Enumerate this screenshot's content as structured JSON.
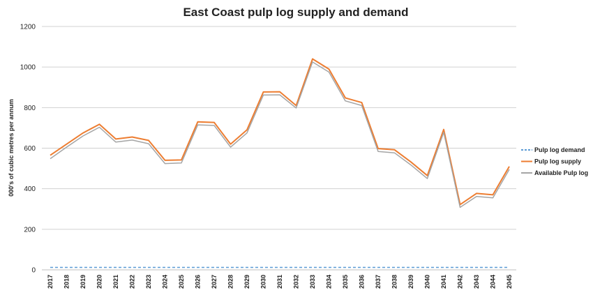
{
  "chart_data": {
    "type": "line",
    "title": "East Coast pulp log supply and demand",
    "xlabel": "",
    "ylabel": "000's of cubic metres per annum",
    "ylim": [
      0,
      1200
    ],
    "yticks": [
      0,
      200,
      400,
      600,
      800,
      1000,
      1200
    ],
    "grid": true,
    "legend_position": "right",
    "x": [
      "2017",
      "2018",
      "2019",
      "2020",
      "2021",
      "2022",
      "2023",
      "2024",
      "2025",
      "2026",
      "2027",
      "2028",
      "2029",
      "2030",
      "2031",
      "2032",
      "2033",
      "2034",
      "2035",
      "2036",
      "2037",
      "2038",
      "2039",
      "2040",
      "2041",
      "2042",
      "2043",
      "2044",
      "2045"
    ],
    "series": [
      {
        "name": "Pulp log demand",
        "color": "#5b9bd5",
        "dashed": true,
        "values": [
          12,
          12,
          12,
          12,
          12,
          12,
          12,
          12,
          12,
          12,
          12,
          12,
          12,
          12,
          12,
          12,
          12,
          12,
          12,
          12,
          12,
          12,
          12,
          12,
          12,
          12,
          12,
          12,
          12
        ]
      },
      {
        "name": "Pulp log supply",
        "color": "#ed7d31",
        "dashed": false,
        "values": [
          565,
          620,
          675,
          718,
          645,
          655,
          638,
          540,
          542,
          730,
          727,
          620,
          690,
          877,
          878,
          810,
          1040,
          990,
          848,
          825,
          598,
          592,
          532,
          465,
          692,
          322,
          377,
          370,
          510
        ]
      },
      {
        "name": "Available  Pulp log",
        "color": "#a5a5a5",
        "dashed": false,
        "values": [
          548,
          605,
          660,
          703,
          630,
          640,
          622,
          524,
          527,
          715,
          712,
          605,
          675,
          862,
          863,
          798,
          1025,
          975,
          833,
          810,
          584,
          577,
          517,
          450,
          678,
          308,
          362,
          355,
          495
        ]
      }
    ]
  }
}
